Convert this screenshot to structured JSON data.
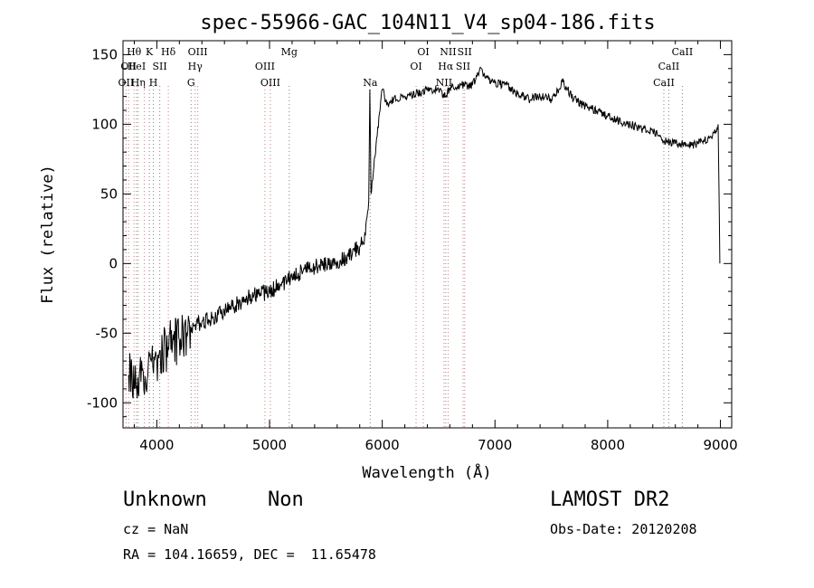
{
  "chart_data": {
    "type": "line",
    "title": "spec-55966-GAC_104N11_V4_sp04-186.fits",
    "xlabel": "Wavelength (Å)",
    "ylabel": "Flux (relative)",
    "xlim": [
      3700,
      9100
    ],
    "ylim": [
      -118,
      160
    ],
    "xticks": [
      4000,
      5000,
      6000,
      7000,
      8000,
      9000
    ],
    "yticks": [
      -100,
      -50,
      0,
      50,
      100,
      150
    ],
    "grid": false,
    "series": [
      {
        "color": "#000000",
        "x": [
          3750,
          3800,
          3850,
          3900,
          3950,
          4000,
          4050,
          4100,
          4150,
          4200,
          4300,
          4400,
          4500,
          4600,
          4700,
          4800,
          4900,
          5000,
          5100,
          5200,
          5300,
          5400,
          5500,
          5600,
          5700,
          5800,
          5850,
          5880,
          5890,
          5900,
          5920,
          5950,
          5980,
          6000,
          6020,
          6050,
          6100,
          6200,
          6300,
          6400,
          6500,
          6563,
          6600,
          6700,
          6800,
          6880,
          6900,
          7000,
          7100,
          7200,
          7300,
          7400,
          7500,
          7600,
          7700,
          7800,
          7900,
          8000,
          8100,
          8200,
          8300,
          8400,
          8500,
          8600,
          8700,
          8800,
          8900,
          8960,
          8980,
          8995
        ],
        "y": [
          -80,
          -90,
          -75,
          -85,
          -70,
          -70,
          -62,
          -60,
          -55,
          -55,
          -45,
          -42,
          -38,
          -35,
          -30,
          -25,
          -22,
          -20,
          -15,
          -10,
          -5,
          -2,
          0,
          2,
          5,
          12,
          20,
          45,
          125,
          50,
          65,
          90,
          110,
          125,
          120,
          115,
          118,
          120,
          122,
          125,
          125,
          120,
          126,
          128,
          128,
          140,
          135,
          130,
          128,
          122,
          118,
          120,
          118,
          130,
          118,
          113,
          110,
          106,
          102,
          100,
          97,
          95,
          88,
          86,
          85,
          86,
          90,
          95,
          100,
          0
        ]
      }
    ],
    "line_markers": [
      {
        "wavelength": 3727,
        "label": "OII",
        "color": "#c08080",
        "row": 2
      },
      {
        "wavelength": 3750,
        "label": "OII",
        "color": "#c08080",
        "row": 1
      },
      {
        "wavelength": 3798,
        "label": "Hθ",
        "color": "#c08080",
        "row": 0
      },
      {
        "wavelength": 3820,
        "label": "HeI",
        "color": "#808080",
        "row": 1
      },
      {
        "wavelength": 3835,
        "label": "Hη",
        "color": "#c08080",
        "row": 2
      },
      {
        "wavelength": 3889,
        "label": "",
        "color": "#c08080",
        "row": 0
      },
      {
        "wavelength": 3934,
        "label": "K",
        "color": "#808080",
        "row": 0
      },
      {
        "wavelength": 3969,
        "label": "H",
        "color": "#808080",
        "row": 2
      },
      {
        "wavelength": 4026,
        "label": "SII",
        "color": "#808080",
        "row": 1
      },
      {
        "wavelength": 4102,
        "label": "Hδ",
        "color": "#c08080",
        "row": 0
      },
      {
        "wavelength": 4304,
        "label": "G",
        "color": "#808080",
        "row": 2
      },
      {
        "wavelength": 4340,
        "label": "Hγ",
        "color": "#c08080",
        "row": 1
      },
      {
        "wavelength": 4363,
        "label": "OIII",
        "color": "#c08080",
        "row": 0
      },
      {
        "wavelength": 4959,
        "label": "OIII",
        "color": "#c08080",
        "row": 1
      },
      {
        "wavelength": 5007,
        "label": "OIII",
        "color": "#c08080",
        "row": 2
      },
      {
        "wavelength": 5175,
        "label": "Mg",
        "color": "#808080",
        "row": 0
      },
      {
        "wavelength": 5893,
        "label": "Na",
        "color": "#808080",
        "row": 2
      },
      {
        "wavelength": 6300,
        "label": "OI",
        "color": "#c08080",
        "row": 1
      },
      {
        "wavelength": 6364,
        "label": "OI",
        "color": "#c08080",
        "row": 0
      },
      {
        "wavelength": 6548,
        "label": "NII",
        "color": "#c08080",
        "row": 2
      },
      {
        "wavelength": 6563,
        "label": "Hα",
        "color": "#c08080",
        "row": 1
      },
      {
        "wavelength": 6584,
        "label": "NII",
        "color": "#c08080",
        "row": 0
      },
      {
        "wavelength": 6717,
        "label": "SII",
        "color": "#c08080",
        "row": 1
      },
      {
        "wavelength": 6731,
        "label": "SII",
        "color": "#c08080",
        "row": 0
      },
      {
        "wavelength": 8498,
        "label": "CaII",
        "color": "#808080",
        "row": 2
      },
      {
        "wavelength": 8542,
        "label": "CaII",
        "color": "#808080",
        "row": 1
      },
      {
        "wavelength": 8662,
        "label": "CaII",
        "color": "#808080",
        "row": 0
      }
    ]
  },
  "info": {
    "class_label": "Unknown",
    "subclass_label": "Non",
    "survey": "LAMOST DR2",
    "cz": "cz = NaN",
    "obs_date": "Obs-Date: 20120208",
    "coords": "RA = 104.16659, DEC =  11.65478"
  }
}
